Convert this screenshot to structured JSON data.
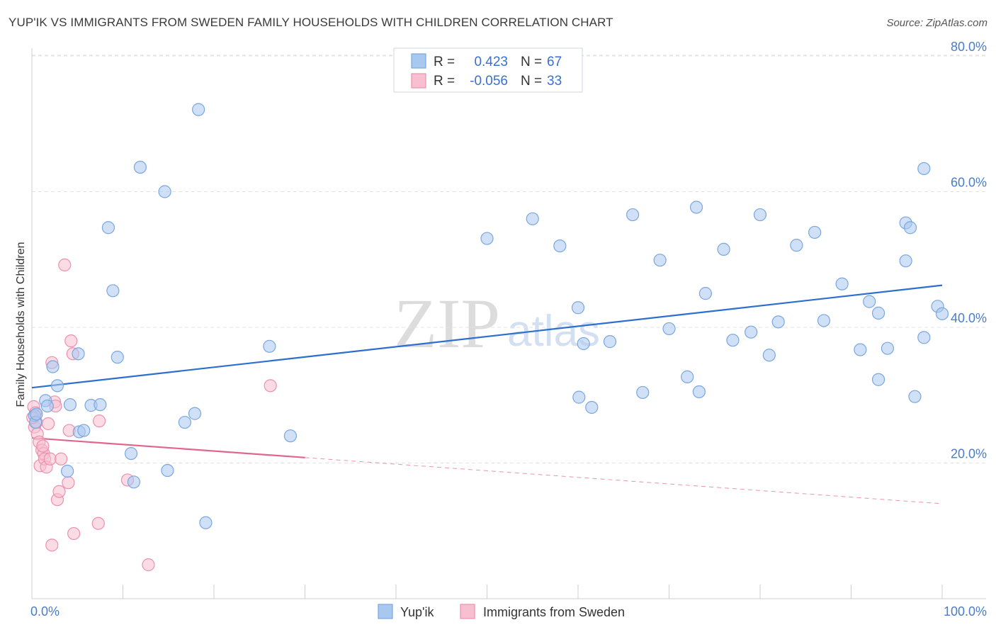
{
  "title": "YUP'IK VS IMMIGRANTS FROM SWEDEN FAMILY HOUSEHOLDS WITH CHILDREN CORRELATION CHART",
  "source": "Source: ZipAtlas.com",
  "watermark": {
    "zip": "ZIP",
    "atlas": "atlas"
  },
  "stats": {
    "r_label": "R =",
    "n_label": "N =",
    "series1": {
      "r": "0.423",
      "n": "67"
    },
    "series2": {
      "r": "-0.056",
      "n": "33"
    }
  },
  "colors": {
    "blue_fill": "#a9c8f0",
    "blue_stroke": "#7aa6e0",
    "blue_line": "#2d6fd0",
    "pink_fill": "#f7bfd0",
    "pink_stroke": "#ee8fae",
    "pink_line": "#e0668f"
  },
  "chart_data": {
    "type": "scatter",
    "title": "YUP'IK VS IMMIGRANTS FROM SWEDEN FAMILY HOUSEHOLDS WITH CHILDREN CORRELATION CHART",
    "xlabel": "",
    "ylabel": "Family Households with Children",
    "xlim": [
      0,
      100
    ],
    "ylim": [
      0,
      83
    ],
    "x_tick_labels": [
      "0.0%",
      "100.0%"
    ],
    "y_ticks": [
      20,
      40,
      60,
      80
    ],
    "y_tick_labels": [
      "20.0%",
      "40.0%",
      "60.0%",
      "80.0%"
    ],
    "legend": [
      "Yup'ik",
      "Immigrants from Sweden"
    ],
    "series": [
      {
        "name": "Yup'ik",
        "r": 0.423,
        "n": 67,
        "trend": {
          "x": [
            0,
            100
          ],
          "y": [
            31.1,
            46.2
          ]
        },
        "points": [
          [
            0.3,
            27.0
          ],
          [
            0.4,
            26.0
          ],
          [
            1.5,
            29.2
          ],
          [
            1.7,
            28.4
          ],
          [
            2.3,
            34.2
          ],
          [
            2.8,
            31.4
          ],
          [
            4.2,
            28.6
          ],
          [
            5.1,
            36.1
          ],
          [
            5.2,
            24.6
          ],
          [
            5.7,
            24.8
          ],
          [
            6.5,
            28.5
          ],
          [
            7.5,
            28.6
          ],
          [
            8.4,
            54.7
          ],
          [
            8.9,
            45.4
          ],
          [
            9.4,
            35.6
          ],
          [
            10.9,
            21.4
          ],
          [
            11.2,
            17.2
          ],
          [
            11.9,
            63.6
          ],
          [
            14.6,
            60.0
          ],
          [
            14.9,
            18.9
          ],
          [
            16.8,
            26.0
          ],
          [
            17.9,
            27.3
          ],
          [
            18.3,
            72.1
          ],
          [
            19.1,
            11.2
          ],
          [
            26.1,
            37.2
          ],
          [
            28.4,
            24.0
          ],
          [
            3.9,
            18.8
          ],
          [
            50.0,
            53.1
          ],
          [
            55.0,
            56.0
          ],
          [
            58.0,
            52.0
          ],
          [
            60.0,
            42.9
          ],
          [
            60.1,
            29.7
          ],
          [
            60.6,
            37.6
          ],
          [
            61.5,
            28.2
          ],
          [
            63.5,
            37.9
          ],
          [
            66.0,
            56.6
          ],
          [
            67.1,
            30.4
          ],
          [
            69.0,
            49.9
          ],
          [
            70.0,
            39.8
          ],
          [
            72.0,
            32.7
          ],
          [
            73.0,
            57.7
          ],
          [
            73.3,
            30.5
          ],
          [
            74.0,
            45.0
          ],
          [
            76.0,
            51.5
          ],
          [
            77.0,
            38.1
          ],
          [
            79.0,
            39.3
          ],
          [
            80.0,
            56.6
          ],
          [
            81.0,
            35.9
          ],
          [
            82.0,
            40.8
          ],
          [
            84.0,
            52.1
          ],
          [
            86.0,
            54.0
          ],
          [
            87.0,
            41.0
          ],
          [
            89.0,
            46.4
          ],
          [
            91.0,
            36.7
          ],
          [
            92.0,
            43.8
          ],
          [
            93.0,
            32.3
          ],
          [
            93.0,
            42.1
          ],
          [
            94.0,
            36.9
          ],
          [
            96.0,
            49.8
          ],
          [
            96.0,
            55.4
          ],
          [
            96.5,
            54.7
          ],
          [
            97.0,
            29.8
          ],
          [
            98.0,
            38.5
          ],
          [
            98.0,
            63.4
          ],
          [
            99.5,
            43.1
          ],
          [
            100.0,
            42.0
          ],
          [
            0.5,
            27.2
          ]
        ]
      },
      {
        "name": "Immigrants from Sweden",
        "r": -0.056,
        "n": 33,
        "trend": {
          "x": [
            0,
            30
          ],
          "y": [
            23.7,
            20.8
          ]
        },
        "trend_dashed": {
          "x": [
            30,
            100
          ],
          "y": [
            20.8,
            14.0
          ]
        },
        "points": [
          [
            0.2,
            28.3
          ],
          [
            0.3,
            25.3
          ],
          [
            0.4,
            27.4
          ],
          [
            0.5,
            26.0
          ],
          [
            0.6,
            24.3
          ],
          [
            0.8,
            23.1
          ],
          [
            0.9,
            19.6
          ],
          [
            1.1,
            21.9
          ],
          [
            1.3,
            21.4
          ],
          [
            1.4,
            20.6
          ],
          [
            1.6,
            19.4
          ],
          [
            1.8,
            25.8
          ],
          [
            2.0,
            20.6
          ],
          [
            2.2,
            34.8
          ],
          [
            2.5,
            29.0
          ],
          [
            2.6,
            28.4
          ],
          [
            2.8,
            14.6
          ],
          [
            3.0,
            15.8
          ],
          [
            3.2,
            20.6
          ],
          [
            3.6,
            49.2
          ],
          [
            4.0,
            17.1
          ],
          [
            4.1,
            24.8
          ],
          [
            4.3,
            38.0
          ],
          [
            4.5,
            36.1
          ],
          [
            4.6,
            9.6
          ],
          [
            7.4,
            26.2
          ],
          [
            7.3,
            11.1
          ],
          [
            10.5,
            17.5
          ],
          [
            12.8,
            5.0
          ],
          [
            26.2,
            31.4
          ],
          [
            2.2,
            7.9
          ],
          [
            1.2,
            22.5
          ],
          [
            0.1,
            26.7
          ]
        ]
      }
    ]
  }
}
